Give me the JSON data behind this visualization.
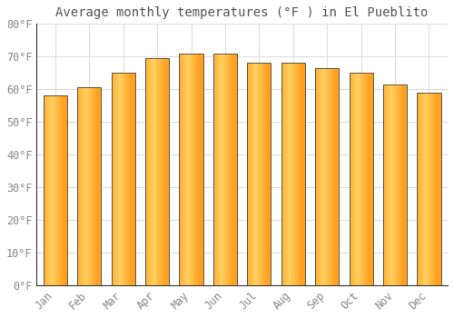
{
  "title": "Average monthly temperatures (°F ) in El Pueblito",
  "months": [
    "Jan",
    "Feb",
    "Mar",
    "Apr",
    "May",
    "Jun",
    "Jul",
    "Aug",
    "Sep",
    "Oct",
    "Nov",
    "Dec"
  ],
  "values": [
    58,
    60.5,
    65,
    69.5,
    71,
    71,
    68,
    68,
    66.5,
    65,
    61.5,
    59
  ],
  "bar_color_left": "#FFD060",
  "bar_color_right": "#FFA020",
  "bar_edge_color": "#555544",
  "ylim": [
    0,
    80
  ],
  "yticks": [
    0,
    10,
    20,
    30,
    40,
    50,
    60,
    70,
    80
  ],
  "background_color": "#FFFFFF",
  "grid_color": "#DDDDDD",
  "title_fontsize": 10,
  "tick_fontsize": 8.5,
  "font_family": "monospace",
  "bar_width": 0.7,
  "figsize": [
    5.0,
    3.5
  ],
  "dpi": 100
}
